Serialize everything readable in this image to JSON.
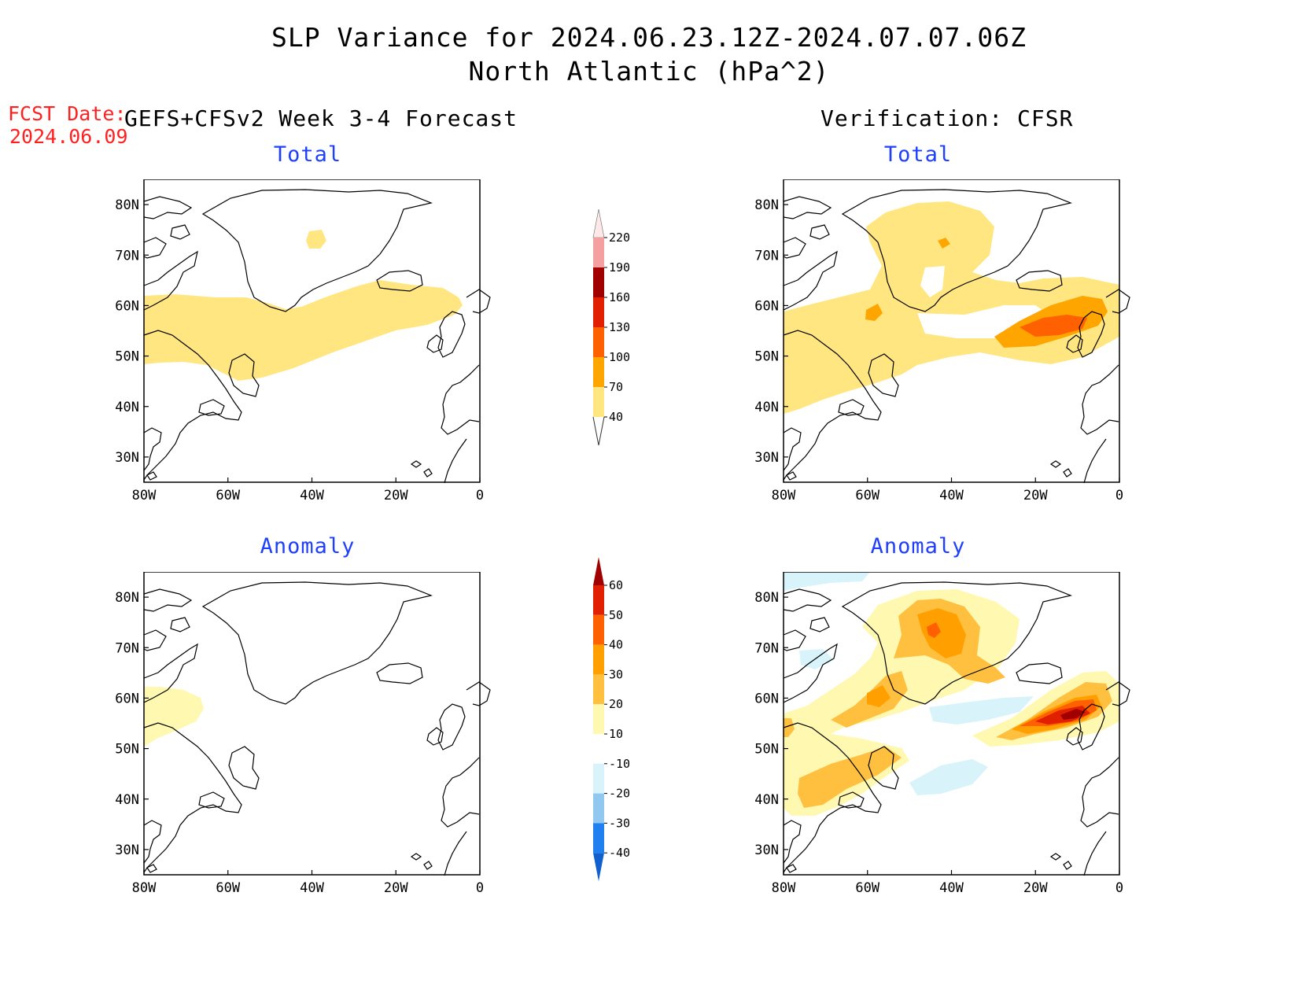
{
  "title": {
    "line1": "SLP Variance for 2024.06.23.12Z-2024.07.07.06Z",
    "line2": "North Atlantic (hPa^2)"
  },
  "fcst_date": {
    "label": "FCST Date:",
    "value": "2024.06.09"
  },
  "left_header": "GEFS+CFSv2 Week 3-4 Forecast",
  "right_header": "Verification: CFSR",
  "panels": [
    {
      "id": "fcst-total",
      "title": "Total"
    },
    {
      "id": "verif-total",
      "title": "Total"
    },
    {
      "id": "fcst-anomaly",
      "title": "Anomaly"
    },
    {
      "id": "verif-anomaly",
      "title": "Anomaly"
    }
  ],
  "axes": {
    "lon_labels": [
      "80W",
      "60W",
      "40W",
      "20W",
      "0"
    ],
    "lon_values": [
      -80,
      -60,
      -40,
      -20,
      0
    ],
    "lat_labels": [
      "30N",
      "40N",
      "50N",
      "60N",
      "70N",
      "80N"
    ],
    "lat_values": [
      30,
      40,
      50,
      60,
      70,
      80
    ],
    "lon_range": [
      -80,
      0
    ],
    "lat_range": [
      25,
      85
    ]
  },
  "colorbar_total": {
    "levels": [
      "40",
      "70",
      "100",
      "130",
      "160",
      "190",
      "220"
    ],
    "colors": [
      "#ffe680",
      "#ffa500",
      "#ff6000",
      "#e02000",
      "#a00000",
      "#f4a0a0",
      "#ffe8e8"
    ]
  },
  "colorbar_anomaly": {
    "levels": [
      "-40",
      "-30",
      "-20",
      "-10",
      "10",
      "20",
      "30",
      "40",
      "50",
      "60"
    ],
    "colors": [
      "#1060d0",
      "#2080f0",
      "#90c8f0",
      "#d8f4fa",
      "#ffffff",
      "#fff8b0",
      "#ffc040",
      "#ffa000",
      "#ff6000",
      "#e02000",
      "#a00000"
    ]
  }
}
